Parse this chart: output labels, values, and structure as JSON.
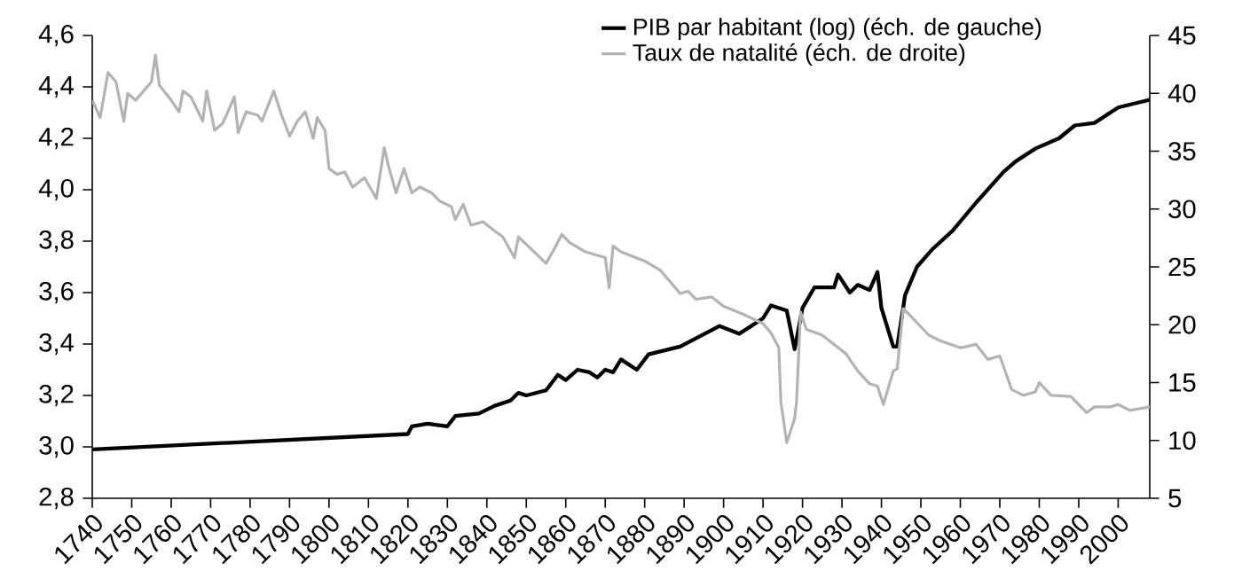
{
  "chart_data": {
    "type": "line",
    "legend": "top right",
    "xlim": [
      1740,
      2008
    ],
    "xticks": [
      1740,
      1750,
      1760,
      1770,
      1780,
      1790,
      1800,
      1810,
      1820,
      1830,
      1840,
      1850,
      1860,
      1870,
      1880,
      1890,
      1900,
      1910,
      1920,
      1930,
      1940,
      1950,
      1960,
      1970,
      1980,
      1990,
      2000
    ],
    "ylim": [
      2.8,
      4.6
    ],
    "yticks": [
      {
        "value": 2.8,
        "label": "2,8"
      },
      {
        "value": 3.0,
        "label": "3,0"
      },
      {
        "value": 3.2,
        "label": "3,2"
      },
      {
        "value": 3.4,
        "label": "3,4"
      },
      {
        "value": 3.6,
        "label": "3,6"
      },
      {
        "value": 3.8,
        "label": "3,8"
      },
      {
        "value": 4.0,
        "label": "4,0"
      },
      {
        "value": 4.2,
        "label": "4,2"
      },
      {
        "value": 4.4,
        "label": "4,4"
      },
      {
        "value": 4.6,
        "label": "4,6"
      }
    ],
    "y2lim": [
      5,
      45
    ],
    "y2ticks": [
      5,
      10,
      15,
      20,
      25,
      30,
      35,
      40,
      45
    ],
    "series": [
      {
        "name": "PIB par habitant (log) (éch. de gauche)",
        "color": "#000000",
        "axis": "y",
        "x": [
          1740,
          1820,
          1821,
          1825,
          1830,
          1832,
          1838,
          1842,
          1846,
          1848,
          1850,
          1855,
          1858,
          1860,
          1863,
          1866,
          1868,
          1870,
          1872,
          1874,
          1878,
          1881,
          1889,
          1899,
          1904,
          1910,
          1912,
          1916,
          1918,
          1920,
          1923,
          1928,
          1929,
          1932,
          1934,
          1937,
          1939,
          1940,
          1943,
          1944,
          1946,
          1949,
          1953,
          1958,
          1964,
          1971,
          1974,
          1979,
          1985,
          1989,
          1994,
          2000,
          2008
        ],
        "values": [
          2.99,
          3.05,
          3.08,
          3.09,
          3.08,
          3.12,
          3.13,
          3.16,
          3.18,
          3.21,
          3.2,
          3.22,
          3.28,
          3.26,
          3.3,
          3.29,
          3.27,
          3.3,
          3.29,
          3.34,
          3.3,
          3.36,
          3.39,
          3.47,
          3.44,
          3.5,
          3.55,
          3.53,
          3.38,
          3.54,
          3.62,
          3.62,
          3.67,
          3.6,
          3.63,
          3.61,
          3.68,
          3.54,
          3.39,
          3.39,
          3.59,
          3.7,
          3.77,
          3.84,
          3.95,
          4.07,
          4.11,
          4.16,
          4.2,
          4.25,
          4.26,
          4.32,
          4.35
        ]
      },
      {
        "name": "Taux de natalité (éch. de droite)",
        "color": "#b3b3b3",
        "axis": "y2",
        "x": [
          1740,
          1742,
          1744,
          1746,
          1748,
          1749,
          1751,
          1753,
          1755,
          1756,
          1757,
          1760,
          1762,
          1763,
          1765,
          1768,
          1769,
          1771,
          1773,
          1774,
          1776,
          1777,
          1779,
          1782,
          1783,
          1786,
          1788,
          1790,
          1792,
          1794,
          1796,
          1797,
          1799,
          1800,
          1802,
          1804,
          1806,
          1809,
          1812,
          1814,
          1815,
          1817,
          1819,
          1821,
          1823,
          1826,
          1828,
          1831,
          1832,
          1834,
          1836,
          1839,
          1842,
          1844,
          1847,
          1848,
          1852,
          1855,
          1857,
          1859,
          1861,
          1865,
          1868,
          1870,
          1871,
          1872,
          1874,
          1880,
          1884,
          1889,
          1891,
          1893,
          1897,
          1900,
          1905,
          1910,
          1912,
          1914,
          1914.5,
          1916,
          1918,
          1918.5,
          1919.5,
          1921,
          1925,
          1928,
          1931,
          1934,
          1937,
          1939,
          1940.5,
          1943,
          1944,
          1945.5,
          1947,
          1952,
          1955,
          1960,
          1964,
          1967,
          1970,
          1973,
          1976,
          1979,
          1980,
          1983,
          1988,
          1992,
          1994,
          1998,
          2000,
          2003,
          2008
        ],
        "values": [
          39.4,
          37.9,
          41.8,
          41.0,
          37.6,
          40.0,
          39.4,
          40.2,
          41.0,
          43.3,
          40.7,
          39.4,
          38.4,
          40.2,
          39.7,
          37.6,
          40.2,
          36.8,
          37.4,
          38.1,
          39.7,
          36.6,
          38.4,
          38.1,
          37.6,
          40.2,
          38.1,
          36.3,
          37.6,
          38.4,
          36.1,
          37.9,
          36.8,
          33.5,
          33.0,
          33.2,
          31.9,
          32.7,
          30.9,
          35.3,
          33.8,
          31.4,
          33.5,
          31.4,
          31.9,
          31.4,
          30.7,
          30.2,
          29.1,
          30.4,
          28.6,
          28.9,
          28.1,
          27.6,
          25.8,
          27.6,
          26.3,
          25.3,
          26.5,
          27.8,
          27.1,
          26.3,
          26.0,
          25.8,
          23.2,
          26.8,
          26.3,
          25.5,
          24.7,
          22.7,
          22.9,
          22.2,
          22.4,
          21.6,
          20.9,
          20.1,
          19.3,
          18.0,
          13.4,
          9.8,
          11.9,
          13.4,
          21.1,
          19.6,
          19.1,
          18.3,
          17.5,
          16.0,
          14.9,
          14.7,
          13.1,
          16.0,
          16.2,
          21.4,
          20.9,
          19.1,
          18.6,
          18.0,
          18.3,
          17.0,
          17.3,
          14.4,
          13.9,
          14.2,
          15.0,
          13.9,
          13.8,
          12.4,
          12.9,
          12.9,
          13.1,
          12.6,
          12.9
        ]
      }
    ]
  }
}
